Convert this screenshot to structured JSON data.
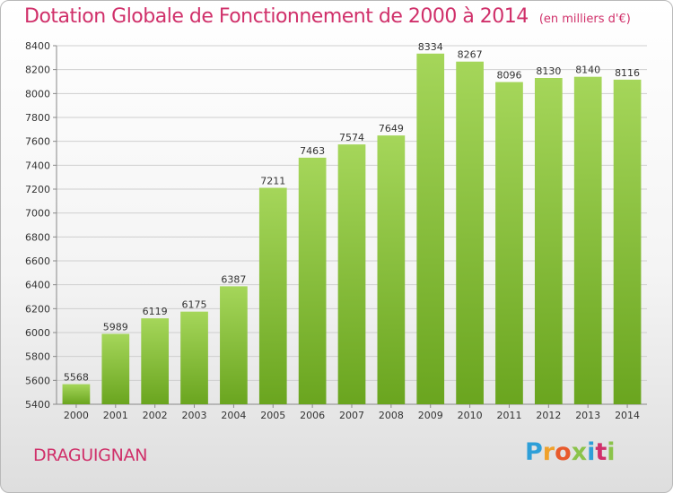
{
  "header": {
    "title": "Dotation Globale de Fonctionnement de 2000 à 2014",
    "unit": "(en milliers d'€)"
  },
  "footer": {
    "town": "DRAGUIGNAN",
    "logo_text": "Proxiti"
  },
  "colors": {
    "title": "#d0306a",
    "bar_top": "#a5d65a",
    "bar_bottom": "#6aa51f",
    "grid": "#cfcfcf"
  },
  "chart_data": {
    "type": "bar",
    "title": "Dotation Globale de Fonctionnement de 2000 à 2014",
    "xlabel": "",
    "ylabel": "",
    "categories": [
      "2000",
      "2001",
      "2002",
      "2003",
      "2004",
      "2005",
      "2006",
      "2007",
      "2008",
      "2009",
      "2010",
      "2011",
      "2012",
      "2013",
      "2014"
    ],
    "values": [
      5568,
      5989,
      6119,
      6175,
      6387,
      7211,
      7463,
      7574,
      7649,
      8334,
      8267,
      8096,
      8130,
      8140,
      8116
    ],
    "ylim": [
      5400,
      8400
    ],
    "yticks": [
      5400,
      5600,
      5800,
      6000,
      6200,
      6400,
      6600,
      6800,
      7000,
      7200,
      7400,
      7600,
      7800,
      8000,
      8200,
      8400
    ],
    "grid": true,
    "legend": "none"
  }
}
